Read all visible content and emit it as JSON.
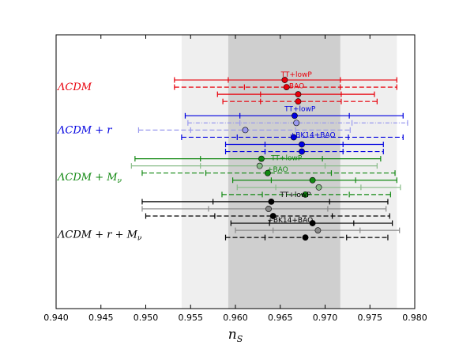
{
  "chart_data": {
    "type": "scatter",
    "title": "",
    "xlabel": "n_S",
    "xlim": [
      0.94,
      0.98
    ],
    "xticks": [
      "0.940",
      "0.945",
      "0.950",
      "0.955",
      "0.960",
      "0.965",
      "0.970",
      "0.975",
      "0.980"
    ],
    "grid": false,
    "bands": [
      {
        "from": 0.954,
        "to": 0.978,
        "color": "#efefef"
      },
      {
        "from": 0.9592,
        "to": 0.9717,
        "color": "#cfcfcf"
      }
    ],
    "groups": [
      {
        "label": "ΛCDM",
        "color": "#e8000b"
      },
      {
        "label": "ΛCDM + r",
        "color": "#0000e0"
      },
      {
        "label": "ΛCDM + Mν",
        "color": "#118811"
      },
      {
        "label": "ΛCDM + r + Mν",
        "color": "#000000"
      }
    ],
    "annotations": [
      {
        "text": "TT+lowP",
        "x": 0.9668,
        "row": 0.2,
        "color": "#e8000b"
      },
      {
        "text": "+BAO",
        "x": 0.9665,
        "row": 1.85,
        "color": "#e8000b"
      },
      {
        "text": "TT+lowP",
        "x": 0.9672,
        "row": 5.05,
        "color": "#0000e0"
      },
      {
        "text": "+BK14+BAO",
        "x": 0.9686,
        "row": 8.7,
        "color": "#0000e0"
      },
      {
        "text": "TT+lowP",
        "x": 0.9657,
        "row": 11.9,
        "color": "#118811"
      },
      {
        "text": "+BAO",
        "x": 0.9647,
        "row": 13.5,
        "color": "#118811"
      },
      {
        "text": "TT+lowP",
        "x": 0.9667,
        "row": 17.0,
        "color": "#000000"
      },
      {
        "text": "+BK14+BAO",
        "x": 0.9661,
        "row": 20.55,
        "color": "#000000"
      }
    ],
    "series": [
      {
        "group": 0,
        "style": "solid",
        "color": "#e8000b",
        "point": 0.9655,
        "lo68": 0.9592,
        "hi68": 0.9717,
        "lo95": 0.9532,
        "hi95": 0.978,
        "row": 1
      },
      {
        "group": 0,
        "style": "dashed",
        "color": "#e8000b",
        "point": 0.9657,
        "lo68": 0.961,
        "hi68": 0.9717,
        "lo95": 0.9532,
        "hi95": 0.978,
        "row": 2
      },
      {
        "group": 0,
        "style": "solid",
        "color": "#e8000b",
        "point": 0.967,
        "lo68": 0.9628,
        "hi68": 0.9718,
        "lo95": 0.958,
        "hi95": 0.9755,
        "row": 3
      },
      {
        "group": 0,
        "style": "dashed",
        "color": "#e8000b",
        "point": 0.967,
        "lo68": 0.9628,
        "hi68": 0.9718,
        "lo95": 0.9586,
        "hi95": 0.9758,
        "row": 4
      },
      {
        "group": 1,
        "style": "solid",
        "color": "#0000e0",
        "point": 0.9666,
        "lo68": 0.9605,
        "hi68": 0.9727,
        "lo95": 0.9544,
        "hi95": 0.9787,
        "row": 6
      },
      {
        "group": 1,
        "style": "dashdot",
        "color": "#9999ee",
        "point": 0.9668,
        "lo68": 0.9605,
        "hi68": 0.973,
        "lo95": 0.9547,
        "hi95": 0.9792,
        "row": 7
      },
      {
        "group": 1,
        "style": "dashed",
        "color": "#9999ee",
        "point": 0.9611,
        "lo68": 0.955,
        "hi68": 0.9667,
        "lo95": 0.9492,
        "hi95": 0.9728,
        "row": 8
      },
      {
        "group": 1,
        "style": "dashed",
        "color": "#0000e0",
        "point": 0.9665,
        "lo68": 0.9602,
        "hi68": 0.9726,
        "lo95": 0.954,
        "hi95": 0.9787,
        "row": 9
      },
      {
        "group": 1,
        "style": "solid",
        "color": "#0000e0",
        "point": 0.9674,
        "lo68": 0.9633,
        "hi68": 0.972,
        "lo95": 0.9589,
        "hi95": 0.9765,
        "row": 10
      },
      {
        "group": 1,
        "style": "dashed",
        "color": "#0000e0",
        "point": 0.9674,
        "lo68": 0.9633,
        "hi68": 0.972,
        "lo95": 0.9589,
        "hi95": 0.9765,
        "row": 11
      },
      {
        "group": 2,
        "style": "solid",
        "color": "#118811",
        "point": 0.9629,
        "lo68": 0.9561,
        "hi68": 0.9697,
        "lo95": 0.9488,
        "hi95": 0.9762,
        "row": 12
      },
      {
        "group": 2,
        "style": "solid",
        "color": "#88bb88",
        "point": 0.9627,
        "lo68": 0.9561,
        "hi68": 0.97,
        "lo95": 0.9484,
        "hi95": 0.9758,
        "row": 13
      },
      {
        "group": 2,
        "style": "dashed",
        "color": "#118811",
        "point": 0.9636,
        "lo68": 0.9567,
        "hi68": 0.9707,
        "lo95": 0.9496,
        "hi95": 0.9778,
        "row": 14
      },
      {
        "group": 2,
        "style": "solid",
        "color": "#118811",
        "point": 0.9686,
        "lo68": 0.964,
        "hi68": 0.9734,
        "lo95": 0.9597,
        "hi95": 0.978,
        "row": 15
      },
      {
        "group": 2,
        "style": "solid",
        "color": "#88bb88",
        "point": 0.9693,
        "lo68": 0.9645,
        "hi68": 0.974,
        "lo95": 0.9602,
        "hi95": 0.9784,
        "row": 16
      },
      {
        "group": 2,
        "style": "dashed",
        "color": "#118811",
        "point": 0.9678,
        "lo68": 0.963,
        "hi68": 0.9727,
        "lo95": 0.9585,
        "hi95": 0.9773,
        "row": 17
      },
      {
        "group": 3,
        "style": "solid",
        "color": "#000000",
        "point": 0.964,
        "lo68": 0.9575,
        "hi68": 0.9705,
        "lo95": 0.9496,
        "hi95": 0.977,
        "row": 18
      },
      {
        "group": 3,
        "style": "solid",
        "color": "#888888",
        "point": 0.9637,
        "lo68": 0.957,
        "hi68": 0.9703,
        "lo95": 0.9496,
        "hi95": 0.9768,
        "row": 19
      },
      {
        "group": 3,
        "style": "dashed",
        "color": "#000000",
        "point": 0.9642,
        "lo68": 0.9577,
        "hi68": 0.9708,
        "lo95": 0.95,
        "hi95": 0.9772,
        "row": 20
      },
      {
        "group": 3,
        "style": "solid",
        "color": "#000000",
        "point": 0.9686,
        "lo68": 0.9638,
        "hi68": 0.9732,
        "lo95": 0.9595,
        "hi95": 0.9775,
        "row": 21
      },
      {
        "group": 3,
        "style": "solid",
        "color": "#888888",
        "point": 0.9692,
        "lo68": 0.9642,
        "hi68": 0.9739,
        "lo95": 0.96,
        "hi95": 0.9783,
        "row": 22
      },
      {
        "group": 3,
        "style": "dashed",
        "color": "#000000",
        "point": 0.9678,
        "lo68": 0.9633,
        "hi68": 0.9724,
        "lo95": 0.9589,
        "hi95": 0.977,
        "row": 23
      }
    ]
  }
}
